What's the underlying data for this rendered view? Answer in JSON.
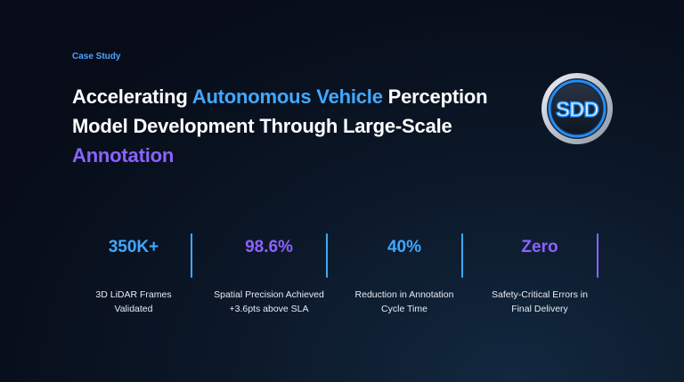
{
  "eyebrow": "Case Study",
  "headline": {
    "part1": "Accelerating ",
    "part2": "Autonomous Vehicle",
    "part3": " Perception Model Development Through Large-Scale ",
    "part4": "Annotation"
  },
  "logo_text": "SDD",
  "stats": [
    {
      "value": "350K+",
      "label": "3D LiDAR Frames Validated",
      "color": "#3fa9ff"
    },
    {
      "value": "98.6%",
      "label": "Spatial Precision Achieved +3.6pts above SLA",
      "color": "#8c62ff"
    },
    {
      "value": "40%",
      "label": "Reduction in Annotation Cycle Time",
      "color": "#3fa9ff"
    },
    {
      "value": "Zero",
      "label": "Safety-Critical Errors in Final Delivery",
      "color": "#8c62ff"
    }
  ],
  "colors": {
    "accent_blue": "#42a8ff",
    "accent_purple": "#8a63ff",
    "background": "#0b1626"
  }
}
